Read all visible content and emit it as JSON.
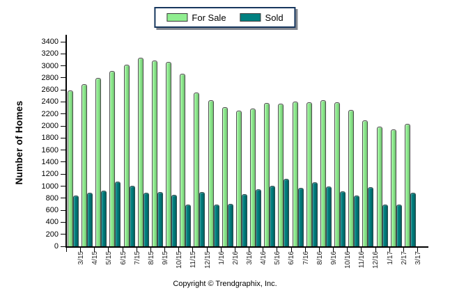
{
  "chart_data": {
    "type": "bar",
    "title": "",
    "categories": [
      "3/15",
      "4/15",
      "5/15",
      "6/15",
      "7/15",
      "8/15",
      "9/15",
      "10/15",
      "11/15",
      "12/15",
      "1/16",
      "2/16",
      "3/16",
      "4/16",
      "5/16",
      "6/16",
      "7/16",
      "8/16",
      "9/16",
      "10/16",
      "11/16",
      "12/16",
      "1/17",
      "2/17",
      "3/17"
    ],
    "series": [
      {
        "name": "For Sale",
        "color": "#90EE90",
        "values": [
          2590,
          2700,
          2800,
          2920,
          3020,
          3130,
          3090,
          3060,
          2870,
          2560,
          2430,
          2310,
          2250,
          2290,
          2380,
          2370,
          2410,
          2390,
          2430,
          2390,
          2270,
          2090,
          1990,
          1940,
          2030
        ]
      },
      {
        "name": "Sold",
        "color": "#008080",
        "values": [
          850,
          890,
          930,
          1080,
          1010,
          890,
          900,
          860,
          690,
          900,
          690,
          710,
          870,
          950,
          1010,
          1120,
          970,
          1060,
          990,
          910,
          850,
          980,
          690,
          690,
          890
        ]
      }
    ],
    "xlabel": "",
    "ylabel": "Number of Homes",
    "ylim": [
      0,
      3400
    ],
    "ytick_step": 200,
    "yticks": [
      0,
      200,
      400,
      600,
      800,
      1000,
      1200,
      1400,
      1600,
      1800,
      2000,
      2200,
      2400,
      2600,
      2800,
      3000,
      3200,
      3400
    ],
    "grid": false,
    "legend_position": "top-center"
  },
  "legend": {
    "items": [
      {
        "label": "For Sale",
        "color": "#90EE90"
      },
      {
        "label": "Sold",
        "color": "#008080"
      }
    ]
  },
  "footer": {
    "copyright": "Copyright © Trendgraphix, Inc."
  },
  "colors": {
    "for_sale": "#90EE90",
    "sold": "#008080",
    "legend_border": "#17375E",
    "axis": "#000000",
    "background": "#ffffff"
  }
}
